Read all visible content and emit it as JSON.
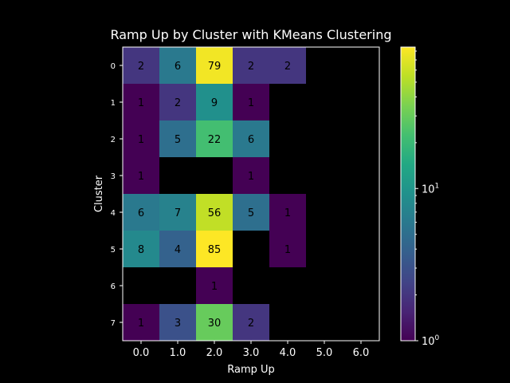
{
  "chart_data": {
    "type": "heatmap",
    "title": "Ramp Up by Cluster with KMeans Clustering",
    "xlabel": "Ramp Up",
    "ylabel": "Cluster",
    "x_tick_labels": [
      "0.0",
      "1.0",
      "2.0",
      "3.0",
      "4.0",
      "5.0",
      "6.0"
    ],
    "y_tick_labels": [
      "0",
      "1",
      "2",
      "3",
      "4",
      "5",
      "6",
      "7"
    ],
    "values": [
      [
        2,
        6,
        79,
        2,
        2,
        null,
        null
      ],
      [
        1,
        2,
        9,
        1,
        null,
        null,
        null
      ],
      [
        1,
        5,
        22,
        6,
        null,
        null,
        null
      ],
      [
        1,
        null,
        null,
        1,
        null,
        null,
        null
      ],
      [
        6,
        7,
        56,
        5,
        1,
        null,
        null
      ],
      [
        8,
        4,
        85,
        null,
        1,
        null,
        null
      ],
      [
        null,
        null,
        1,
        null,
        null,
        null,
        null
      ],
      [
        1,
        3,
        30,
        2,
        null,
        null,
        null
      ]
    ],
    "color_scale": "log",
    "colormap": "viridis",
    "colorbar": {
      "min": 1,
      "max": 85,
      "ticks": [
        {
          "value": 1,
          "base": "10",
          "exp": "0"
        },
        {
          "value": 10,
          "base": "10",
          "exp": "1"
        }
      ]
    },
    "background_color": "#000000",
    "grid": false,
    "legend": "colorbar-right"
  }
}
